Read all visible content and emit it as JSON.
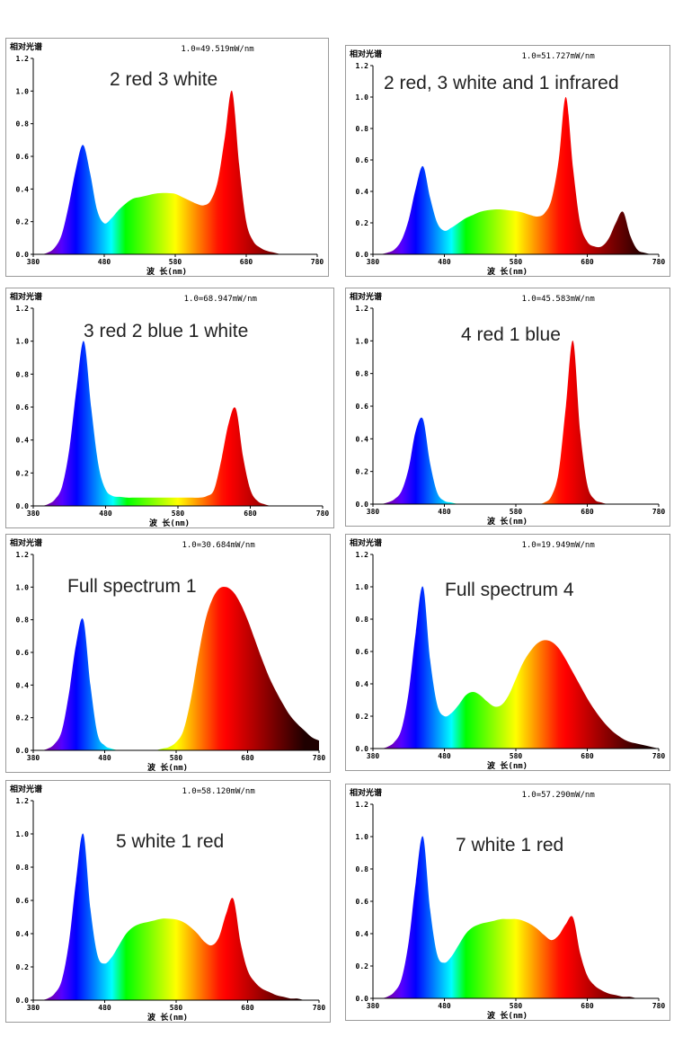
{
  "colors": {
    "background": "#ffffff",
    "axis": "#000000",
    "text": "#222222"
  },
  "chart_data": [
    {
      "type": "area",
      "title": "2 red 3 white",
      "header": "相对光谱",
      "scale_label": "1.0=49.519mW/nm",
      "xlabel": "波 长(nm)",
      "ylabel": "",
      "xlim": [
        380,
        780
      ],
      "ylim": [
        0,
        1.2
      ],
      "xticks": [
        380,
        480,
        580,
        680,
        780
      ],
      "yticks": [
        0.0,
        0.2,
        0.4,
        0.6,
        0.8,
        1.0,
        1.2
      ],
      "ytick_labels": [
        "0.0",
        "0.2",
        "0.4",
        "0.6",
        "0.8",
        "1.0",
        "1.2"
      ],
      "x": [
        380,
        390,
        400,
        410,
        420,
        430,
        440,
        450,
        460,
        470,
        480,
        490,
        500,
        510,
        520,
        530,
        540,
        550,
        560,
        570,
        580,
        590,
        600,
        610,
        620,
        630,
        640,
        650,
        660,
        670,
        680,
        690,
        700,
        710,
        720,
        730,
        740,
        750,
        760,
        770,
        780
      ],
      "series": [
        {
          "name": "relative spectrum",
          "values": [
            0,
            0,
            0.01,
            0.04,
            0.12,
            0.3,
            0.52,
            0.67,
            0.5,
            0.27,
            0.19,
            0.22,
            0.27,
            0.31,
            0.34,
            0.35,
            0.36,
            0.37,
            0.375,
            0.375,
            0.37,
            0.35,
            0.33,
            0.31,
            0.3,
            0.33,
            0.45,
            0.72,
            1.0,
            0.55,
            0.2,
            0.08,
            0.04,
            0.02,
            0.01,
            0,
            0,
            0,
            0,
            0,
            0
          ]
        }
      ]
    },
    {
      "type": "area",
      "title": "2 red, 3 white and 1 infrared",
      "header": "相对光谱",
      "scale_label": "1.0=51.727mW/nm",
      "xlabel": "波 长(nm)",
      "ylabel": "",
      "xlim": [
        380,
        780
      ],
      "ylim": [
        0,
        1.2
      ],
      "xticks": [
        380,
        480,
        580,
        680,
        780
      ],
      "yticks": [
        0.0,
        0.2,
        0.4,
        0.6,
        0.8,
        1.0,
        1.2
      ],
      "ytick_labels": [
        "0.0",
        "0.2",
        "0.4",
        "0.6",
        "0.8",
        "1.0",
        "1.2"
      ],
      "x": [
        380,
        390,
        400,
        410,
        420,
        430,
        440,
        450,
        460,
        470,
        480,
        490,
        500,
        510,
        520,
        530,
        540,
        550,
        560,
        570,
        580,
        590,
        600,
        610,
        620,
        630,
        640,
        650,
        660,
        670,
        680,
        690,
        700,
        710,
        720,
        730,
        740,
        750,
        760,
        770,
        780
      ],
      "series": [
        {
          "name": "relative spectrum",
          "values": [
            0,
            0,
            0.01,
            0.03,
            0.09,
            0.22,
            0.42,
            0.56,
            0.36,
            0.2,
            0.15,
            0.17,
            0.2,
            0.23,
            0.25,
            0.27,
            0.28,
            0.285,
            0.285,
            0.28,
            0.275,
            0.265,
            0.25,
            0.24,
            0.26,
            0.35,
            0.6,
            1.0,
            0.55,
            0.2,
            0.08,
            0.05,
            0.05,
            0.1,
            0.2,
            0.27,
            0.12,
            0.03,
            0.01,
            0,
            0
          ]
        }
      ]
    },
    {
      "type": "area",
      "title": "3 red 2 blue 1 white",
      "header": "相对光谱",
      "scale_label": "1.0=68.947mW/nm",
      "xlabel": "波 长(nm)",
      "ylabel": "",
      "xlim": [
        380,
        780
      ],
      "ylim": [
        0,
        1.2
      ],
      "xticks": [
        380,
        480,
        580,
        680,
        780
      ],
      "yticks": [
        0.0,
        0.2,
        0.4,
        0.6,
        0.8,
        1.0,
        1.2
      ],
      "ytick_labels": [
        "0.0",
        "0.2",
        "0.4",
        "0.6",
        "0.8",
        "1.0",
        "1.2"
      ],
      "x": [
        380,
        390,
        400,
        410,
        420,
        430,
        440,
        450,
        460,
        470,
        480,
        490,
        500,
        510,
        520,
        530,
        540,
        550,
        560,
        570,
        580,
        590,
        600,
        610,
        620,
        630,
        640,
        650,
        660,
        670,
        680,
        690,
        700,
        710,
        720,
        730,
        740,
        750,
        760,
        770,
        780
      ],
      "series": [
        {
          "name": "relative spectrum",
          "values": [
            0,
            0,
            0.01,
            0.04,
            0.12,
            0.35,
            0.72,
            1.0,
            0.6,
            0.25,
            0.1,
            0.06,
            0.055,
            0.05,
            0.05,
            0.05,
            0.05,
            0.05,
            0.05,
            0.05,
            0.05,
            0.05,
            0.05,
            0.05,
            0.06,
            0.1,
            0.28,
            0.5,
            0.59,
            0.3,
            0.1,
            0.03,
            0.01,
            0,
            0,
            0,
            0,
            0,
            0,
            0,
            0
          ]
        }
      ]
    },
    {
      "type": "area",
      "title": "4 red 1 blue",
      "header": "相对光谱",
      "scale_label": "1.0=45.583mW/nm",
      "xlabel": "波 长(nm)",
      "ylabel": "",
      "xlim": [
        380,
        780
      ],
      "ylim": [
        0,
        1.2
      ],
      "xticks": [
        380,
        480,
        580,
        680,
        780
      ],
      "yticks": [
        0.0,
        0.2,
        0.4,
        0.6,
        0.8,
        1.0,
        1.2
      ],
      "ytick_labels": [
        "0.0",
        "0.2",
        "0.4",
        "0.6",
        "0.8",
        "1.0",
        "1.2"
      ],
      "x": [
        380,
        390,
        400,
        410,
        420,
        430,
        440,
        450,
        460,
        470,
        480,
        490,
        500,
        510,
        520,
        530,
        540,
        550,
        560,
        570,
        580,
        590,
        600,
        610,
        620,
        630,
        640,
        650,
        660,
        670,
        680,
        690,
        700,
        710,
        720,
        730,
        740,
        750,
        760,
        770,
        780
      ],
      "series": [
        {
          "name": "relative spectrum",
          "values": [
            0,
            0,
            0.01,
            0.03,
            0.08,
            0.22,
            0.45,
            0.52,
            0.25,
            0.07,
            0.02,
            0.01,
            0,
            0,
            0,
            0,
            0,
            0,
            0,
            0,
            0,
            0,
            0,
            0,
            0.01,
            0.05,
            0.2,
            0.6,
            1.0,
            0.45,
            0.12,
            0.03,
            0.01,
            0,
            0,
            0,
            0,
            0,
            0,
            0,
            0
          ]
        }
      ]
    },
    {
      "type": "area",
      "title": "Full spectrum 1",
      "header": "相对光谱",
      "scale_label": "1.0=30.684mW/nm",
      "xlabel": "波 长(nm)",
      "ylabel": "",
      "xlim": [
        380,
        780
      ],
      "ylim": [
        0,
        1.2
      ],
      "xticks": [
        380,
        480,
        580,
        680,
        780
      ],
      "yticks": [
        0.0,
        0.2,
        0.4,
        0.6,
        0.8,
        1.0,
        1.2
      ],
      "ytick_labels": [
        "0.0",
        "0.2",
        "0.4",
        "0.6",
        "0.8",
        "1.0",
        "1.2"
      ],
      "x": [
        380,
        390,
        400,
        410,
        420,
        430,
        440,
        450,
        460,
        470,
        480,
        490,
        500,
        510,
        520,
        530,
        540,
        550,
        560,
        570,
        580,
        590,
        600,
        610,
        620,
        630,
        640,
        650,
        660,
        670,
        680,
        690,
        700,
        710,
        720,
        730,
        740,
        750,
        760,
        770,
        780
      ],
      "series": [
        {
          "name": "relative spectrum",
          "values": [
            0,
            0,
            0.01,
            0.04,
            0.12,
            0.35,
            0.65,
            0.8,
            0.4,
            0.1,
            0.03,
            0.01,
            0,
            0,
            0,
            0,
            0,
            0,
            0.01,
            0.02,
            0.05,
            0.12,
            0.3,
            0.55,
            0.78,
            0.92,
            0.99,
            1.0,
            0.97,
            0.9,
            0.8,
            0.68,
            0.56,
            0.45,
            0.36,
            0.28,
            0.21,
            0.16,
            0.12,
            0.08,
            0.06
          ]
        }
      ]
    },
    {
      "type": "area",
      "title": "Full spectrum 4",
      "header": "相对光谱",
      "scale_label": "1.0=19.949mW/nm",
      "xlabel": "波 长(nm)",
      "ylabel": "",
      "xlim": [
        380,
        780
      ],
      "ylim": [
        0,
        1.2
      ],
      "xticks": [
        380,
        480,
        580,
        680,
        780
      ],
      "yticks": [
        0.0,
        0.2,
        0.4,
        0.6,
        0.8,
        1.0,
        1.2
      ],
      "ytick_labels": [
        "0.0",
        "0.2",
        "0.4",
        "0.6",
        "0.8",
        "1.0",
        "1.2"
      ],
      "x": [
        380,
        390,
        400,
        410,
        420,
        430,
        440,
        450,
        460,
        470,
        480,
        490,
        500,
        510,
        520,
        530,
        540,
        550,
        560,
        570,
        580,
        590,
        600,
        610,
        620,
        630,
        640,
        650,
        660,
        670,
        680,
        690,
        700,
        710,
        720,
        730,
        740,
        750,
        760,
        770,
        780
      ],
      "series": [
        {
          "name": "relative spectrum",
          "values": [
            0,
            0,
            0.01,
            0.04,
            0.12,
            0.35,
            0.72,
            1.0,
            0.55,
            0.27,
            0.2,
            0.22,
            0.27,
            0.33,
            0.35,
            0.33,
            0.29,
            0.26,
            0.27,
            0.33,
            0.43,
            0.53,
            0.6,
            0.65,
            0.67,
            0.66,
            0.62,
            0.55,
            0.47,
            0.39,
            0.31,
            0.24,
            0.18,
            0.13,
            0.09,
            0.06,
            0.04,
            0.03,
            0.02,
            0.01,
            0
          ]
        }
      ]
    },
    {
      "type": "area",
      "title": "5 white 1 red",
      "header": "相对光谱",
      "scale_label": "1.0=58.120mW/nm",
      "xlabel": "波 长(nm)",
      "ylabel": "",
      "xlim": [
        380,
        780
      ],
      "ylim": [
        0,
        1.2
      ],
      "xticks": [
        380,
        480,
        580,
        680,
        780
      ],
      "yticks": [
        0.0,
        0.2,
        0.4,
        0.6,
        0.8,
        1.0,
        1.2
      ],
      "ytick_labels": [
        "0.0",
        "0.2",
        "0.4",
        "0.6",
        "0.8",
        "1.0",
        "1.2"
      ],
      "x": [
        380,
        390,
        400,
        410,
        420,
        430,
        440,
        450,
        460,
        470,
        480,
        490,
        500,
        510,
        520,
        530,
        540,
        550,
        560,
        570,
        580,
        590,
        600,
        610,
        620,
        630,
        640,
        650,
        660,
        670,
        680,
        690,
        700,
        710,
        720,
        730,
        740,
        750,
        760,
        770,
        780
      ],
      "series": [
        {
          "name": "relative spectrum",
          "values": [
            0,
            0,
            0.01,
            0.04,
            0.12,
            0.35,
            0.72,
            1.0,
            0.55,
            0.27,
            0.22,
            0.26,
            0.33,
            0.4,
            0.44,
            0.46,
            0.47,
            0.48,
            0.49,
            0.49,
            0.485,
            0.47,
            0.44,
            0.4,
            0.35,
            0.33,
            0.38,
            0.52,
            0.61,
            0.35,
            0.18,
            0.11,
            0.07,
            0.05,
            0.03,
            0.02,
            0.01,
            0.01,
            0,
            0,
            0
          ]
        }
      ]
    },
    {
      "type": "area",
      "title": "7 white 1 red",
      "header": "相对光谱",
      "scale_label": "1.0=57.290mW/nm",
      "xlabel": "波 长(nm)",
      "ylabel": "",
      "xlim": [
        380,
        780
      ],
      "ylim": [
        0,
        1.2
      ],
      "xticks": [
        380,
        480,
        580,
        680,
        780
      ],
      "yticks": [
        0.0,
        0.2,
        0.4,
        0.6,
        0.8,
        1.0,
        1.2
      ],
      "ytick_labels": [
        "0.0",
        "0.2",
        "0.4",
        "0.6",
        "0.8",
        "1.0",
        "1.2"
      ],
      "x": [
        380,
        390,
        400,
        410,
        420,
        430,
        440,
        450,
        460,
        470,
        480,
        490,
        500,
        510,
        520,
        530,
        540,
        550,
        560,
        570,
        580,
        590,
        600,
        610,
        620,
        630,
        640,
        650,
        660,
        670,
        680,
        690,
        700,
        710,
        720,
        730,
        740,
        750,
        760,
        770,
        780
      ],
      "series": [
        {
          "name": "relative spectrum",
          "values": [
            0,
            0,
            0.01,
            0.04,
            0.12,
            0.35,
            0.72,
            1.0,
            0.55,
            0.27,
            0.22,
            0.26,
            0.33,
            0.4,
            0.44,
            0.46,
            0.47,
            0.48,
            0.49,
            0.49,
            0.49,
            0.48,
            0.46,
            0.43,
            0.39,
            0.36,
            0.39,
            0.46,
            0.5,
            0.28,
            0.14,
            0.08,
            0.05,
            0.03,
            0.02,
            0.01,
            0.01,
            0,
            0,
            0,
            0
          ]
        }
      ]
    }
  ]
}
